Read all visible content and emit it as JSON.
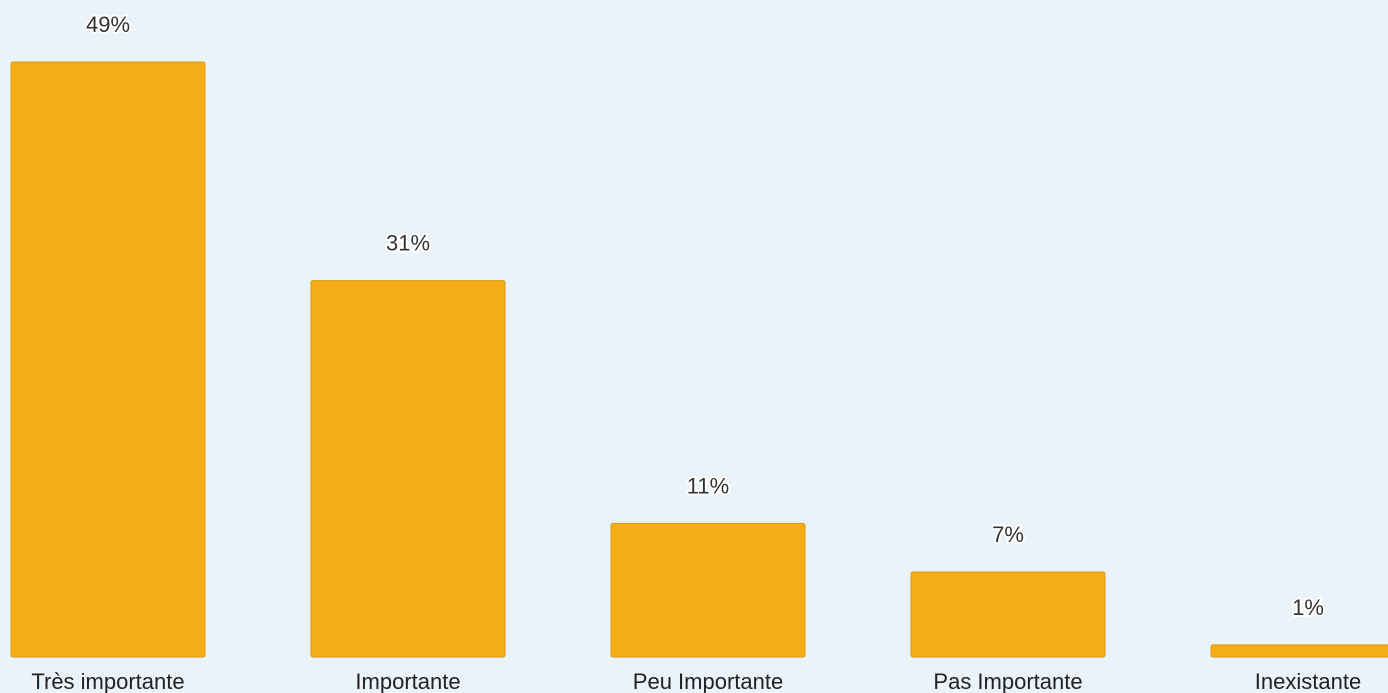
{
  "chart_data": {
    "type": "bar",
    "categories": [
      "Très importante",
      "Importante",
      "Peu Importante",
      "Pas Importante",
      "Inexistante"
    ],
    "values": [
      49,
      31,
      11,
      7,
      1
    ],
    "value_labels": [
      "49%",
      "31%",
      "11%",
      "7%",
      "1%"
    ],
    "unit": "%",
    "title": "",
    "xlabel": "",
    "ylabel": "",
    "ylim": [
      0,
      49
    ],
    "grid": false,
    "legend": "none",
    "colors": {
      "bar": "#f4ad17",
      "bar_border": "#d89a10",
      "background": "#ebf3fa"
    }
  }
}
